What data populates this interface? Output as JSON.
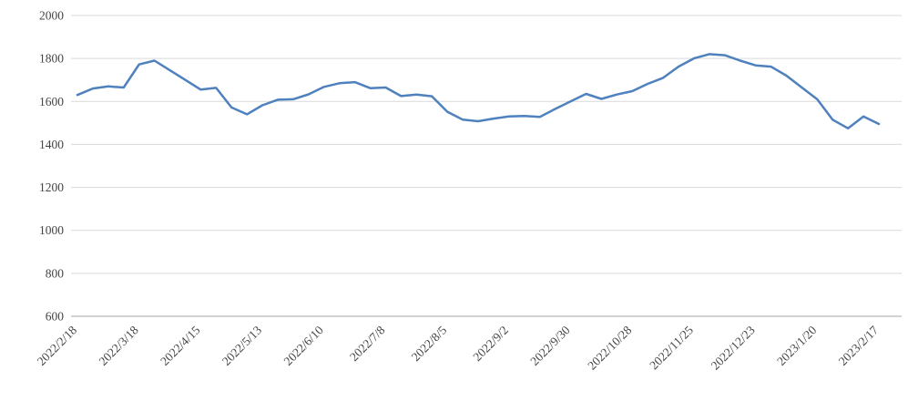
{
  "chart": {
    "background": "#ffffff",
    "line_color": "#4E81BD",
    "gridline_color": "#d9d9d9",
    "axis_line_color": "#a6a6a6",
    "label_color": "#444444"
  },
  "chart_data": {
    "type": "line",
    "title": "",
    "xlabel": "",
    "ylabel": "",
    "grid": true,
    "legend": "none",
    "ylim": [
      600,
      2000
    ],
    "y_ticks": [
      600,
      800,
      1000,
      1200,
      1400,
      1600,
      1800,
      2000
    ],
    "x_tick_labels": [
      "2022/2/18",
      "2022/3/18",
      "2022/4/15",
      "2022/5/13",
      "2022/6/10",
      "2022/7/8",
      "2022/8/5",
      "2022/9/2",
      "2022/9/30",
      "2022/10/28",
      "2022/11/25",
      "2022/12/23",
      "2023/1/20",
      "2023/2/17"
    ],
    "points_per_tick": 4,
    "values": [
      1630,
      1660,
      1670,
      1665,
      1772,
      1790,
      1745,
      1700,
      1655,
      1663,
      1572,
      1540,
      1582,
      1608,
      1610,
      1633,
      1668,
      1685,
      1690,
      1662,
      1665,
      1625,
      1632,
      1624,
      1552,
      1515,
      1508,
      1520,
      1530,
      1532,
      1528,
      1565,
      1600,
      1635,
      1612,
      1632,
      1648,
      1682,
      1710,
      1762,
      1800,
      1820,
      1815,
      1790,
      1768,
      1762,
      1720,
      1665,
      1610,
      1515,
      1475,
      1530,
      1495
    ]
  }
}
